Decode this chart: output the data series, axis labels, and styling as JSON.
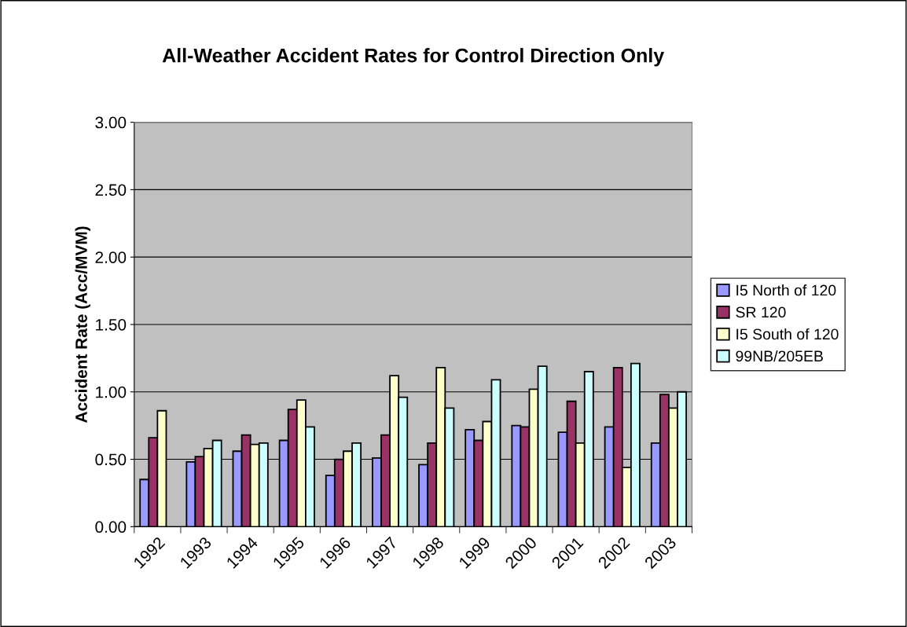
{
  "chart_data": {
    "type": "bar",
    "title": "All-Weather Accident Rates for Control Direction Only",
    "ylabel": "Accident Rate (Acc/MVM)",
    "categories": [
      "1992",
      "1993",
      "1994",
      "1995",
      "1996",
      "1997",
      "1998",
      "1999",
      "2000",
      "2001",
      "2002",
      "2003"
    ],
    "series": [
      {
        "name": "I5 North of 120",
        "color": "#9999ff",
        "values": [
          0.35,
          0.48,
          0.56,
          0.64,
          0.38,
          0.51,
          0.46,
          0.72,
          0.75,
          0.7,
          0.74,
          0.62
        ]
      },
      {
        "name": "SR 120",
        "color": "#993366",
        "values": [
          0.66,
          0.52,
          0.68,
          0.87,
          0.5,
          0.68,
          0.62,
          0.64,
          0.74,
          0.93,
          1.18,
          0.98
        ]
      },
      {
        "name": "I5 South of 120",
        "color": "#ffffcc",
        "values": [
          0.86,
          0.58,
          0.61,
          0.94,
          0.56,
          1.12,
          1.18,
          0.78,
          1.02,
          0.62,
          0.44,
          0.88
        ]
      },
      {
        "name": "99NB/205EB",
        "color": "#ccffff",
        "values": [
          null,
          0.64,
          0.62,
          0.74,
          0.62,
          0.96,
          0.88,
          1.09,
          1.19,
          1.15,
          1.21,
          1.0
        ]
      }
    ],
    "ylim": [
      0,
      3
    ],
    "yticks": [
      {
        "value": 0,
        "label": "0.00"
      },
      {
        "value": 0.5,
        "label": "0.50"
      },
      {
        "value": 1,
        "label": "1.00"
      },
      {
        "value": 1.5,
        "label": "1.50"
      },
      {
        "value": 2,
        "label": "2.00"
      },
      {
        "value": 2.5,
        "label": "2.50"
      },
      {
        "value": 3,
        "label": "3.00"
      }
    ],
    "grid": "y",
    "legend": "right"
  }
}
